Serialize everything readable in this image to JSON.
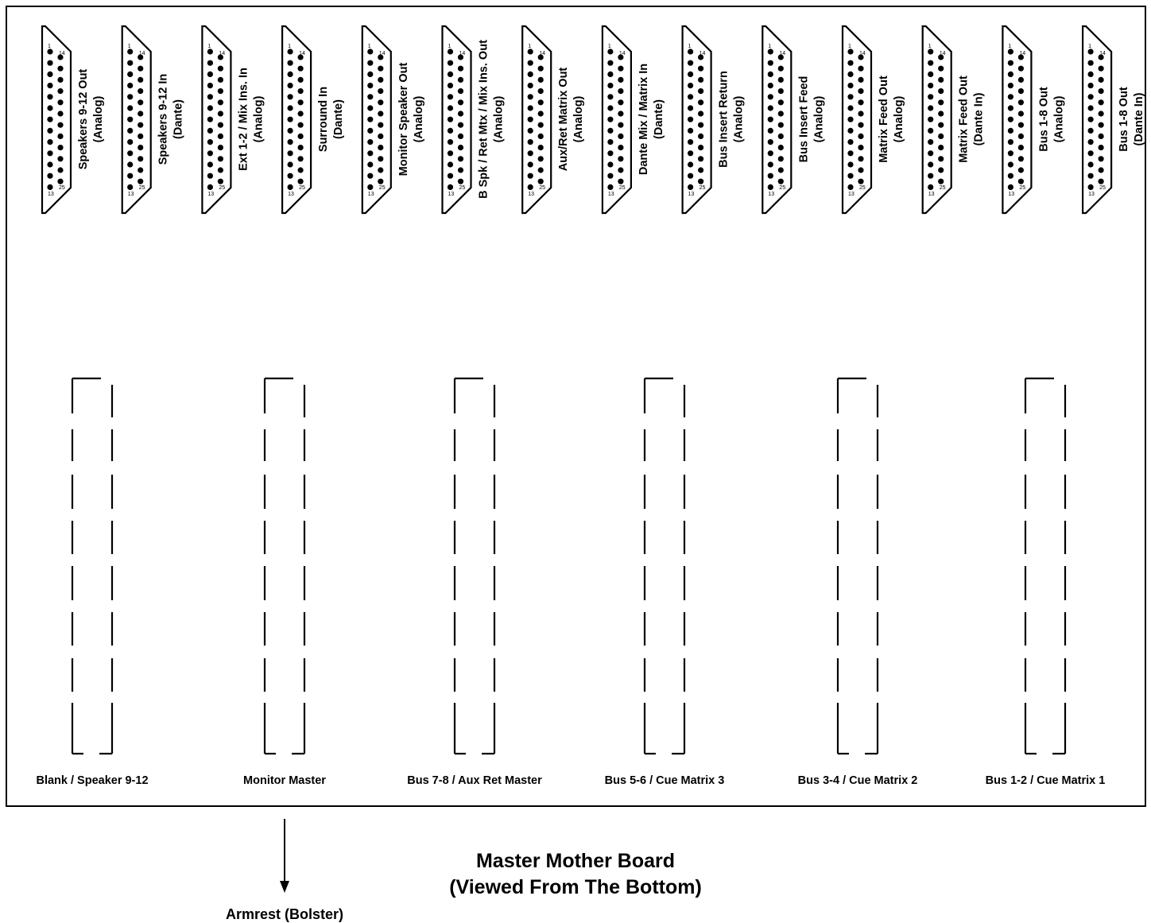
{
  "connectors": [
    {
      "line1": "Speakers 9-12 Out",
      "line2": "(Analog)"
    },
    {
      "line1": "Speakers 9-12 In",
      "line2": "(Dante)"
    },
    {
      "line1": "Ext 1-2 / Mix Ins. In",
      "line2": "(Analog)"
    },
    {
      "line1": "Surround In",
      "line2": "(Dante)"
    },
    {
      "line1": "Monitor Speaker Out",
      "line2": "(Analog)"
    },
    {
      "line1": "B Spk / Ret Mtx / Mix Ins. Out",
      "line2": "(Analog)"
    },
    {
      "line1": "Aux/Ret Matrix Out",
      "line2": "(Analog)"
    },
    {
      "line1": "Dante Mix / Matrix In",
      "line2": "(Dante)"
    },
    {
      "line1": "Bus Insert Return",
      "line2": "(Analog)"
    },
    {
      "line1": "Bus Insert Feed",
      "line2": "(Analog)"
    },
    {
      "line1": "Matrix Feed Out",
      "line2": "(Analog)"
    },
    {
      "line1": "Matrix Feed Out",
      "line2": "(Dante In)"
    },
    {
      "line1": "Bus 1-8 Out",
      "line2": "(Analog)"
    },
    {
      "line1": "Bus 1-8 Out",
      "line2": "(Dante In)"
    }
  ],
  "pin_numbers": {
    "pin1": "1",
    "pin14": "14",
    "pin13": "13",
    "pin25": "25"
  },
  "slots": [
    "Blank / Speaker 9-12",
    "Monitor Master",
    "Bus 7-8 / Aux Ret Master",
    "Bus 5-6 / Cue Matrix 3",
    "Bus 3-4 / Cue Matrix 2",
    "Bus 1-2 / Cue Matrix 1"
  ],
  "armrest_label": "Armrest (Bolster)",
  "title": {
    "line1": "Master Mother Board",
    "line2": "(Viewed From The Bottom)"
  }
}
